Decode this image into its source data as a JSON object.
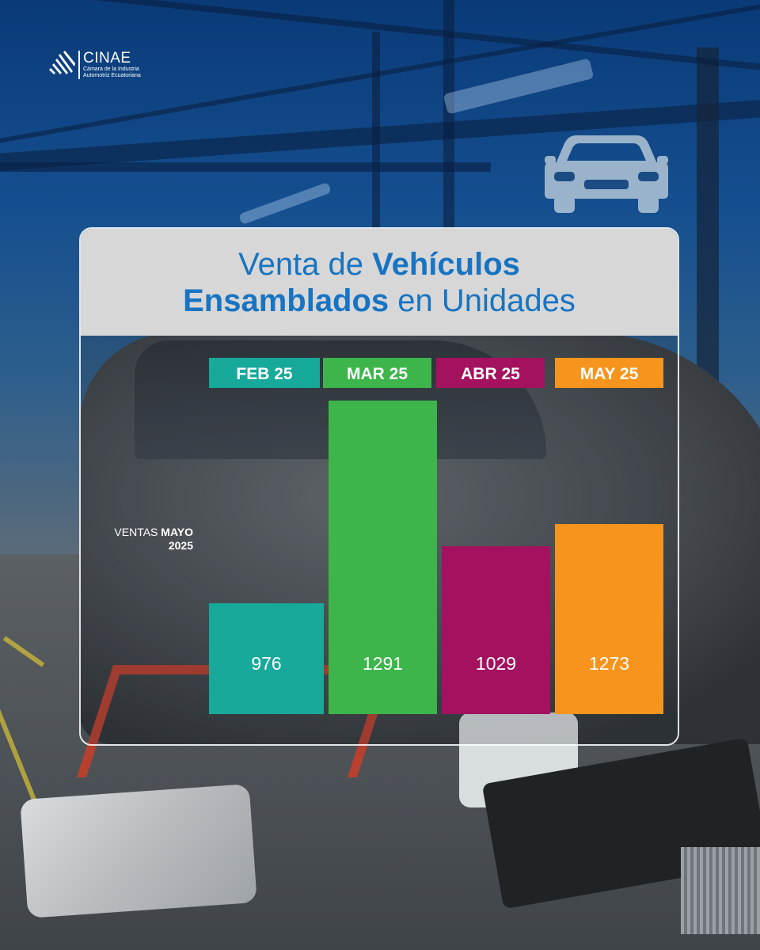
{
  "brand": {
    "name": "CINAE",
    "subtitle_line1": "Cámara de la Industria",
    "subtitle_line2": "Automotriz Ecuatoriana"
  },
  "title": {
    "line1_regular": "Venta de ",
    "line1_bold": "Vehículos",
    "line2_bold": "Ensamblados",
    "line2_regular": " en Unidades"
  },
  "side_label": {
    "regular": "VENTAS ",
    "bold_1": "MAYO",
    "bold_2": "2025"
  },
  "icons": {
    "logo": "cinae-logo-icon",
    "car": "car-front-icon"
  },
  "colors": {
    "title": "#1874c2",
    "header_bg": "#d7d7d7",
    "feb": "#17a99a",
    "mar": "#3db54a",
    "abr": "#a4125f",
    "may": "#f7941d"
  },
  "chart_data": {
    "type": "bar",
    "title": "Venta de Vehículos Ensamblados en Unidades",
    "categories": [
      "FEB 25",
      "MAR 25",
      "ABR 25",
      "MAY 25"
    ],
    "values": [
      976,
      1291,
      1029,
      1273
    ],
    "bar_colors": [
      "#17a99a",
      "#3db54a",
      "#a4125f",
      "#f7941d"
    ],
    "xlabel": "",
    "ylabel": "",
    "grid": false,
    "legend": "none"
  }
}
